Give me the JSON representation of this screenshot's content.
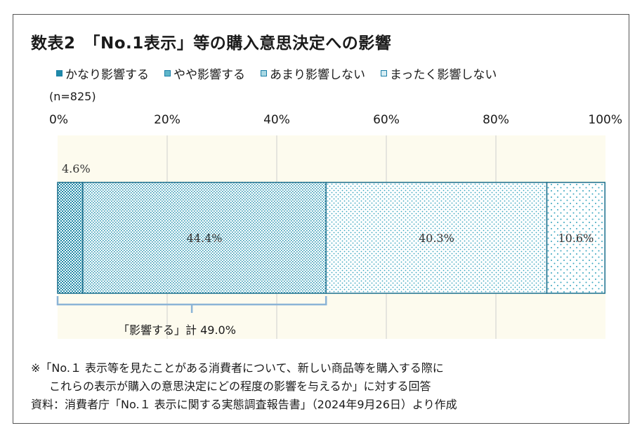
{
  "title": "数表2　「No.1表示」等の購入意思決定への影響",
  "n_label": "(n=825)",
  "colors": {
    "seg1": "#1f8aa8",
    "seg2": "#3aa6bf",
    "seg3": "#56b3c8",
    "seg4": "#6cbfd1",
    "panel": "#fdfbee",
    "border": "#1a6e8c"
  },
  "chart_data": {
    "type": "bar",
    "orientation": "horizontal-stacked-100",
    "xlim": [
      0,
      100
    ],
    "ticks": [
      "0%",
      "20%",
      "40%",
      "60%",
      "80%",
      "100%"
    ],
    "series": [
      {
        "name": "かなり影響する",
        "value": 4.6,
        "label": "4.6%"
      },
      {
        "name": "やや影響する",
        "value": 44.4,
        "label": "44.4%"
      },
      {
        "name": "あまり影響しない",
        "value": 40.3,
        "label": "40.3%"
      },
      {
        "name": "まったく影響しない",
        "value": 10.6,
        "label": "10.6%"
      }
    ],
    "annotation": {
      "text": "「影響する」計 49.0%",
      "from": 0,
      "to": 49.0
    }
  },
  "notes": {
    "line1": "※「No.１ 表示等を見たことがある消費者について、新しい商品等を購入する際に",
    "line2": "これらの表示が購入の意思決定にどの程度の影響を与えるか」に対する回答",
    "line3": "資料：消費者庁「No.１ 表示に関する実態調査報告書」（2024年9月26日）より作成"
  }
}
